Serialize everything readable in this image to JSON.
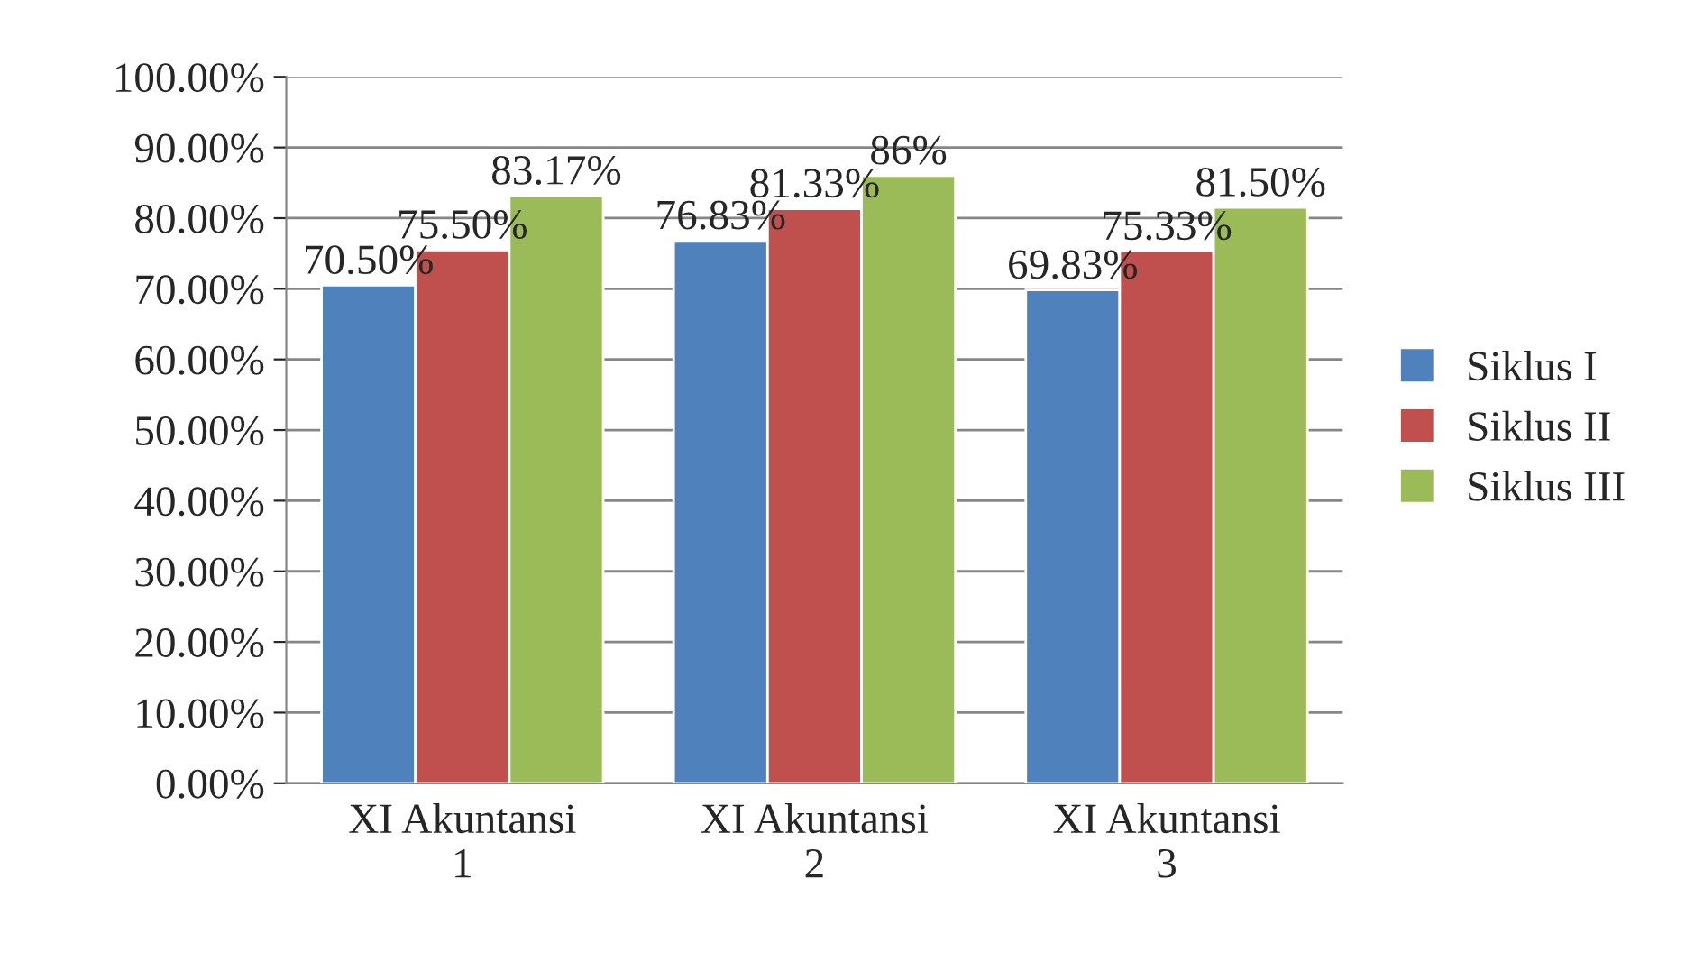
{
  "chart_data": {
    "type": "bar",
    "categories": [
      "XI Akuntansi 1",
      "XI Akuntansi 2",
      "XI Akuntansi 3"
    ],
    "series": [
      {
        "name": "Siklus I",
        "color": "#4f81bd",
        "values": [
          70.5,
          76.83,
          69.83
        ],
        "value_labels": [
          "70.50%",
          "76.83%",
          "69.83%"
        ]
      },
      {
        "name": "Siklus II",
        "color": "#c0504d",
        "values": [
          75.5,
          81.33,
          75.33
        ],
        "value_labels": [
          "75.50%",
          "81.33%",
          "75.33%"
        ]
      },
      {
        "name": "Siklus III",
        "color": "#9bbb59",
        "values": [
          83.17,
          86,
          81.5
        ],
        "value_labels": [
          "83.17%",
          "86%",
          "81.50%"
        ]
      }
    ],
    "ylim": [
      0,
      100
    ],
    "yticks": [
      {
        "value": 0,
        "label": "0.00%"
      },
      {
        "value": 10,
        "label": "10.00%"
      },
      {
        "value": 20,
        "label": "20.00%"
      },
      {
        "value": 30,
        "label": "30.00%"
      },
      {
        "value": 40,
        "label": "40.00%"
      },
      {
        "value": 50,
        "label": "50.00%"
      },
      {
        "value": 60,
        "label": "60.00%"
      },
      {
        "value": 70,
        "label": "70.00%"
      },
      {
        "value": 80,
        "label": "80.00%"
      },
      {
        "value": 90,
        "label": "90.00%"
      },
      {
        "value": 100,
        "label": "100.00%"
      }
    ],
    "grid": "y",
    "legend": "right"
  }
}
